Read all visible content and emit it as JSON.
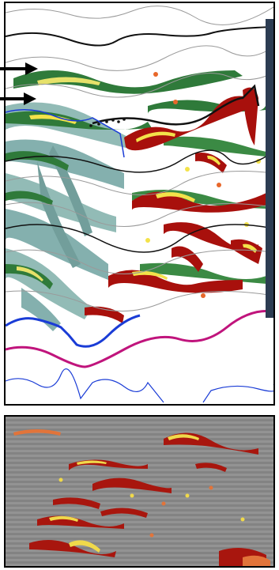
{
  "figure": {
    "top_panel": {
      "description_free": true,
      "colors": {
        "background": "#ffffff",
        "horizon_black": "#111111",
        "horizon_gray": "#a0a0a0",
        "horizon_blue": "#1a3cd6",
        "horizon_magenta": "#c0147c",
        "facies_green_dark": "#2f7a3a",
        "facies_green_light": "#a7c98a",
        "facies_teal": "#6fa3a0",
        "facies_red": "#a8100c",
        "facies_yellow": "#f3e24a",
        "facies_orange": "#e8672a",
        "side_bar": "#2c3c52"
      }
    },
    "bottom_panel": {
      "colors": {
        "background": "#8c8c8c",
        "reflector_red": "#a8160e",
        "reflector_yellow": "#f0d94a",
        "reflector_orange": "#e2743a"
      }
    },
    "arrows": [
      {
        "name": "upper-arrow",
        "color": "#000000"
      },
      {
        "name": "lower-arrow",
        "color": "#000000"
      }
    ]
  }
}
